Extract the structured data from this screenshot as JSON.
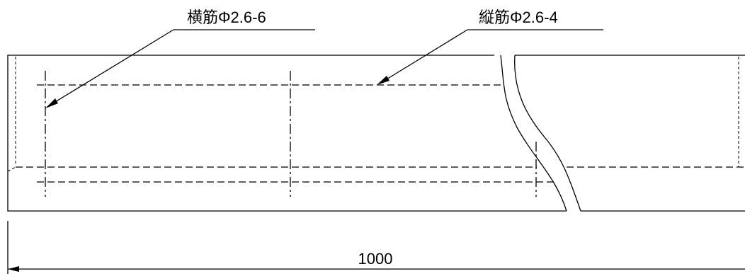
{
  "labels": {
    "transverse_rebar": "横筋Φ2.6-6",
    "longitudinal_rebar": "縦筋Φ2.6-4"
  },
  "dimension": {
    "length": "1000"
  }
}
